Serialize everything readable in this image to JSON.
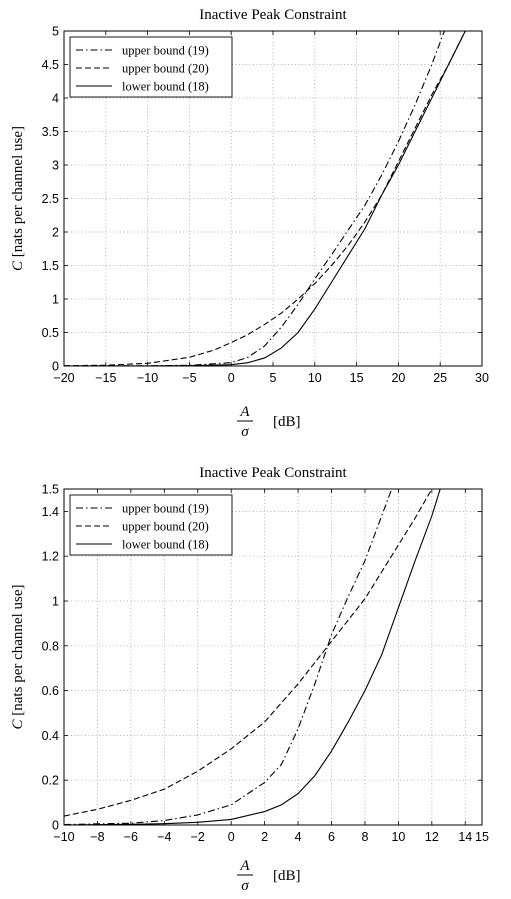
{
  "chart_data": [
    {
      "type": "line",
      "title": "Inactive Peak Constraint",
      "ylabel": "C [nats per channel use]",
      "ylabel_symbol": "C",
      "ylabel_text": " [nats per channel use]",
      "xlabel_num": "A",
      "xlabel_den": "σ",
      "xlabel_unit": "[dB]",
      "xlim": [
        -20,
        30
      ],
      "ylim": [
        0,
        5
      ],
      "xticks": [
        -20,
        -15,
        -10,
        -5,
        0,
        5,
        10,
        15,
        20,
        25,
        30
      ],
      "yticks": [
        0,
        0.5,
        1,
        1.5,
        2,
        2.5,
        3,
        3.5,
        4,
        4.5,
        5
      ],
      "grid": true,
      "legend_position": "top-left",
      "series": [
        {
          "name": "upper bound (19)",
          "style": "dashdot",
          "x": [
            -20,
            -10,
            -5,
            0,
            2,
            4,
            6,
            8,
            10,
            12,
            14,
            16,
            18,
            20,
            22,
            24,
            25.5
          ],
          "y": [
            0,
            0.004,
            0.01,
            0.05,
            0.13,
            0.3,
            0.58,
            0.92,
            1.3,
            1.66,
            2.03,
            2.4,
            2.85,
            3.35,
            3.9,
            4.5,
            5.0
          ]
        },
        {
          "name": "upper bound (20)",
          "style": "dashed",
          "x": [
            -20,
            -15,
            -10,
            -5,
            -2,
            0,
            2,
            4,
            6,
            8,
            10,
            12,
            14,
            16,
            18,
            20,
            22,
            24,
            26,
            28
          ],
          "y": [
            0.004,
            0.012,
            0.04,
            0.13,
            0.24,
            0.35,
            0.47,
            0.62,
            0.79,
            1.0,
            1.23,
            1.5,
            1.8,
            2.15,
            2.55,
            3.05,
            3.55,
            4.05,
            4.5,
            5.0
          ]
        },
        {
          "name": "lower bound (18)",
          "style": "solid",
          "x": [
            -20,
            -10,
            -5,
            0,
            2,
            4,
            6,
            8,
            10,
            12,
            14,
            16,
            18,
            20,
            22,
            24,
            26,
            28
          ],
          "y": [
            0,
            0.002,
            0.005,
            0.02,
            0.05,
            0.12,
            0.27,
            0.5,
            0.85,
            1.25,
            1.65,
            2.05,
            2.55,
            3.0,
            3.5,
            4.0,
            4.5,
            5.0
          ]
        }
      ]
    },
    {
      "type": "line",
      "title": "Inactive Peak Constraint",
      "ylabel": "C [nats per channel use]",
      "ylabel_symbol": "C",
      "ylabel_text": " [nats per channel use]",
      "xlabel_num": "A",
      "xlabel_den": "σ",
      "xlabel_unit": "[dB]",
      "xlim": [
        -10,
        15
      ],
      "ylim": [
        0,
        1.5
      ],
      "xticks": [
        -10,
        -8,
        -6,
        -4,
        -2,
        0,
        2,
        4,
        6,
        8,
        10,
        12,
        14,
        15
      ],
      "xtick_labels": [
        "−10",
        "−8",
        "−6",
        "−4",
        "−2",
        "0",
        "2",
        "4",
        "6",
        "8",
        "10",
        "12",
        "14",
        "15"
      ],
      "yticks": [
        0,
        0.2,
        0.4,
        0.6,
        0.8,
        1,
        1.2,
        1.4,
        1.5
      ],
      "grid": true,
      "legend_position": "top-left",
      "series": [
        {
          "name": "upper bound (19)",
          "style": "dashdot",
          "x": [
            -10,
            -6,
            -4,
            -2,
            0,
            2,
            3,
            4,
            5,
            6,
            7,
            8,
            9,
            9.6
          ],
          "y": [
            0.002,
            0.008,
            0.02,
            0.045,
            0.09,
            0.19,
            0.27,
            0.43,
            0.63,
            0.85,
            1.02,
            1.18,
            1.38,
            1.5
          ]
        },
        {
          "name": "upper bound (20)",
          "style": "dashed",
          "x": [
            -10,
            -8,
            -6,
            -4,
            -2,
            0,
            2,
            4,
            6,
            8,
            9,
            10,
            11,
            12
          ],
          "y": [
            0.04,
            0.07,
            0.11,
            0.16,
            0.24,
            0.34,
            0.46,
            0.63,
            0.82,
            1.01,
            1.13,
            1.25,
            1.37,
            1.5
          ]
        },
        {
          "name": "lower bound (18)",
          "style": "solid",
          "x": [
            -10,
            -6,
            -4,
            -2,
            0,
            2,
            3,
            4,
            5,
            6,
            7,
            8,
            9,
            10,
            11,
            12,
            12.5
          ],
          "y": [
            0,
            0.003,
            0.006,
            0.012,
            0.025,
            0.06,
            0.09,
            0.14,
            0.22,
            0.33,
            0.46,
            0.6,
            0.76,
            0.97,
            1.18,
            1.38,
            1.5
          ]
        }
      ]
    }
  ]
}
